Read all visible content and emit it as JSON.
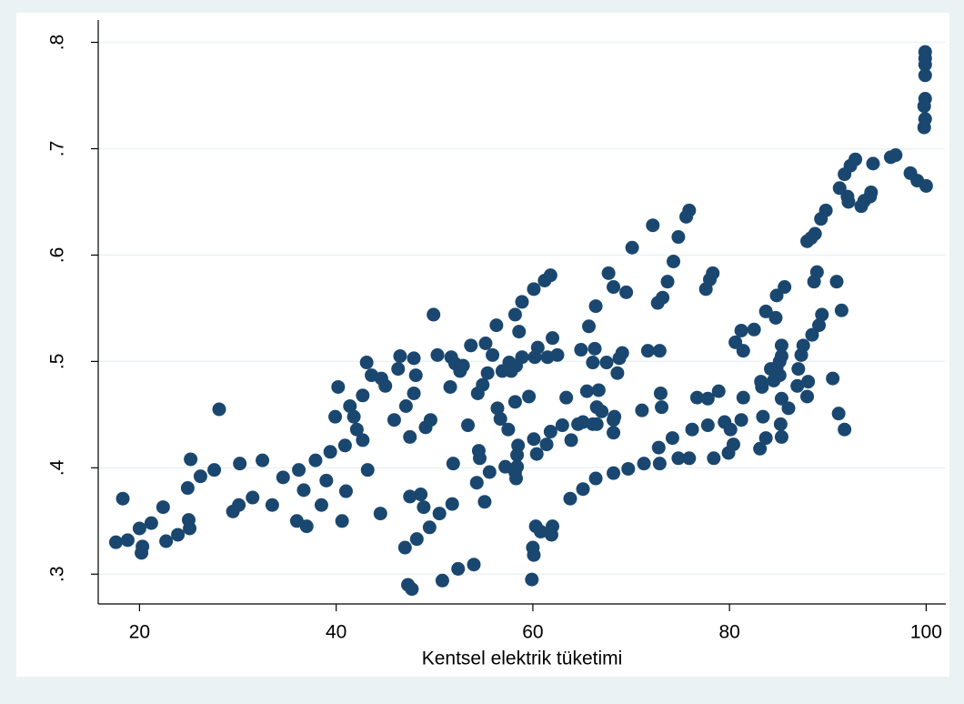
{
  "chart_data": {
    "type": "scatter",
    "x_label": "Kentsel elektrik tüketimi",
    "color": "#1a476f",
    "grid": true,
    "xlim": [
      15.8,
      102
    ],
    "ylim": [
      0.272,
      0.821
    ],
    "xticks": [
      20,
      40,
      60,
      80,
      100
    ],
    "yticks": [
      {
        "value": 0.3,
        "label": ".3"
      },
      {
        "value": 0.4,
        "label": ".4"
      },
      {
        "value": 0.5,
        "label": ".5"
      },
      {
        "value": 0.6,
        "label": ".6"
      },
      {
        "value": 0.7,
        "label": ".7"
      },
      {
        "value": 0.8,
        "label": ".8"
      }
    ],
    "x": [
      17.6,
      18.3,
      18.8,
      20.0,
      20.3,
      20.2,
      21.2,
      22.4,
      22.7,
      23.9,
      25.0,
      25.1,
      24.9,
      25.2,
      26.2,
      27.6,
      28.1,
      29.5,
      30.1,
      30.2,
      31.5,
      32.5,
      33.5,
      34.6,
      36.0,
      36.2,
      36.7,
      37.0,
      37.9,
      38.5,
      39.0,
      39.4,
      39.9,
      40.2,
      40.6,
      41.0,
      40.9,
      41.4,
      41.8,
      42.1,
      42.7,
      42.7,
      43.1,
      43.2,
      43.6,
      44.5,
      44.6,
      45.0,
      45.9,
      46.3,
      46.5,
      47.0,
      47.1,
      47.3,
      47.7,
      47.5,
      47.5,
      47.9,
      47.9,
      48.1,
      48.2,
      48.6,
      48.9,
      49.1,
      49.5,
      49.6,
      49.9,
      50.5,
      50.3,
      50.8,
      51.6,
      51.7,
      51.8,
      51.9,
      52.4,
      52.1,
      52.6,
      52.9,
      53.4,
      53.7,
      54.0,
      54.3,
      54.4,
      54.5,
      54.6,
      54.9,
      55.2,
      55.1,
      55.4,
      55.6,
      55.9,
      56.3,
      56.4,
      56.7,
      56.9,
      57.2,
      57.5,
      57.6,
      57.8,
      58.2,
      58.2,
      58.3,
      58.2,
      58.3,
      58.4,
      58.4,
      58.6,
      58.9,
      58.5,
      58.9,
      59.6,
      59.9,
      60.0,
      60.1,
      60.1,
      60.1,
      60.2,
      60.4,
      60.3,
      60.5,
      60.8,
      61.2,
      61.4,
      61.5,
      61.8,
      61.8,
      61.9,
      62.0,
      62.0,
      62.5,
      63.0,
      63.4,
      63.8,
      63.9,
      64.6,
      64.9,
      65.1,
      65.1,
      65.5,
      65.7,
      66.1,
      66.1,
      66.3,
      66.4,
      66.4,
      66.5,
      66.5,
      66.7,
      67.0,
      67.7,
      67.5,
      68.2,
      68.2,
      68.3,
      68.2,
      68.2,
      68.6,
      68.8,
      69.1,
      69.5,
      69.7,
      70.1,
      71.1,
      71.3,
      71.7,
      72.2,
      72.7,
      72.9,
      72.8,
      72.9,
      73.0,
      73.1,
      73.2,
      73.7,
      74.2,
      74.3,
      74.8,
      74.8,
      75.6,
      75.9,
      75.9,
      76.2,
      76.7,
      77.6,
      77.8,
      77.8,
      78.0,
      78.3,
      78.4,
      78.9,
      79.5,
      79.9,
      80.1,
      80.4,
      80.6,
      81.2,
      81.2,
      81.4,
      81.4,
      82.5,
      83.1,
      83.3,
      83.2,
      83.4,
      83.7,
      83.7,
      84.2,
      84.5,
      84.7,
      84.8,
      84.8,
      85.1,
      85.1,
      85.3,
      85.2,
      85.3,
      85.3,
      85.3,
      85.6,
      86.0,
      86.9,
      87.0,
      87.3,
      87.5,
      87.9,
      87.9,
      88.0,
      88.3,
      88.4,
      88.7,
      88.6,
      88.9,
      89.1,
      89.3,
      89.4,
      89.8,
      90.5,
      90.9,
      91.1,
      91.2,
      91.4,
      91.7,
      91.7,
      92.1,
      92.0,
      92.3,
      92.8,
      93.4,
      93.7,
      94.3,
      94.4,
      94.6,
      96.4,
      96.9,
      98.4,
      99.1,
      99.9,
      99.9,
      99.9,
      99.9,
      99.9,
      99.8,
      99.9,
      99.8,
      100.0
    ],
    "values": [
      0.33,
      0.371,
      0.332,
      0.343,
      0.326,
      0.32,
      0.348,
      0.363,
      0.331,
      0.337,
      0.351,
      0.343,
      0.381,
      0.408,
      0.392,
      0.398,
      0.455,
      0.359,
      0.365,
      0.404,
      0.372,
      0.407,
      0.365,
      0.391,
      0.35,
      0.398,
      0.379,
      0.345,
      0.407,
      0.365,
      0.388,
      0.415,
      0.448,
      0.476,
      0.35,
      0.378,
      0.421,
      0.458,
      0.448,
      0.436,
      0.426,
      0.468,
      0.499,
      0.398,
      0.487,
      0.357,
      0.484,
      0.477,
      0.445,
      0.493,
      0.505,
      0.325,
      0.458,
      0.29,
      0.286,
      0.429,
      0.373,
      0.503,
      0.47,
      0.487,
      0.333,
      0.375,
      0.363,
      0.438,
      0.344,
      0.445,
      0.544,
      0.357,
      0.506,
      0.294,
      0.476,
      0.504,
      0.366,
      0.404,
      0.305,
      0.498,
      0.491,
      0.496,
      0.44,
      0.515,
      0.309,
      0.386,
      0.47,
      0.416,
      0.409,
      0.478,
      0.517,
      0.368,
      0.489,
      0.396,
      0.506,
      0.534,
      0.456,
      0.446,
      0.491,
      0.401,
      0.436,
      0.499,
      0.491,
      0.396,
      0.544,
      0.496,
      0.462,
      0.39,
      0.401,
      0.412,
      0.528,
      0.556,
      0.421,
      0.504,
      0.467,
      0.295,
      0.325,
      0.318,
      0.568,
      0.427,
      0.504,
      0.413,
      0.345,
      0.513,
      0.34,
      0.576,
      0.422,
      0.504,
      0.581,
      0.434,
      0.337,
      0.345,
      0.522,
      0.506,
      0.44,
      0.466,
      0.371,
      0.426,
      0.441,
      0.511,
      0.38,
      0.443,
      0.472,
      0.533,
      0.441,
      0.499,
      0.512,
      0.552,
      0.39,
      0.457,
      0.441,
      0.473,
      0.453,
      0.583,
      0.499,
      0.57,
      0.445,
      0.448,
      0.433,
      0.395,
      0.489,
      0.503,
      0.508,
      0.565,
      0.399,
      0.607,
      0.454,
      0.404,
      0.51,
      0.628,
      0.555,
      0.51,
      0.419,
      0.404,
      0.47,
      0.457,
      0.56,
      0.575,
      0.428,
      0.594,
      0.617,
      0.409,
      0.636,
      0.642,
      0.409,
      0.436,
      0.466,
      0.568,
      0.465,
      0.44,
      0.577,
      0.583,
      0.409,
      0.472,
      0.443,
      0.414,
      0.436,
      0.422,
      0.518,
      0.529,
      0.445,
      0.51,
      0.466,
      0.53,
      0.418,
      0.476,
      0.481,
      0.448,
      0.547,
      0.428,
      0.493,
      0.482,
      0.541,
      0.494,
      0.562,
      0.487,
      0.5,
      0.429,
      0.441,
      0.465,
      0.505,
      0.515,
      0.57,
      0.456,
      0.477,
      0.493,
      0.506,
      0.515,
      0.613,
      0.467,
      0.481,
      0.616,
      0.525,
      0.62,
      0.575,
      0.584,
      0.534,
      0.634,
      0.544,
      0.642,
      0.484,
      0.575,
      0.451,
      0.663,
      0.548,
      0.436,
      0.676,
      0.65,
      0.655,
      0.684,
      0.69,
      0.646,
      0.651,
      0.655,
      0.659,
      0.686,
      0.692,
      0.694,
      0.677,
      0.67,
      0.791,
      0.785,
      0.779,
      0.769,
      0.747,
      0.74,
      0.728,
      0.72,
      0.665
    ]
  }
}
